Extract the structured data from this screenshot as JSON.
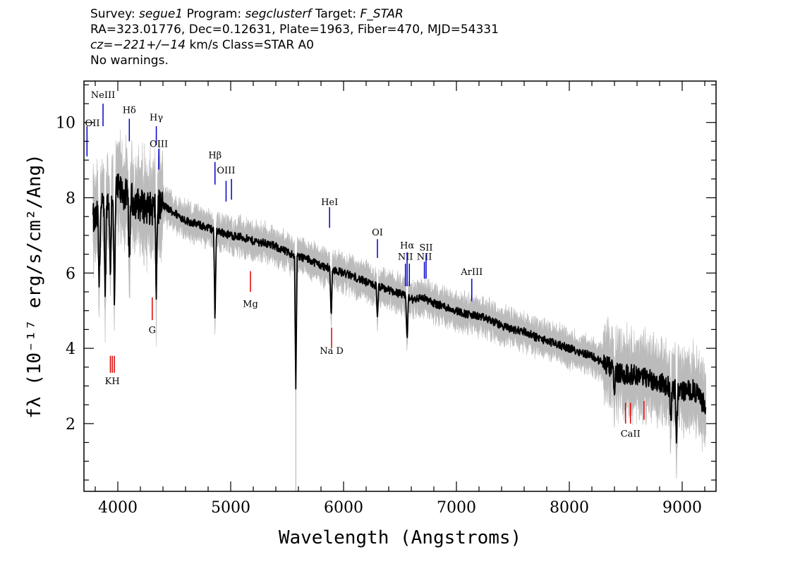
{
  "header": {
    "line1": {
      "survey_label": "Survey: ",
      "survey": "segue1",
      "program_label": " Program: ",
      "program": "segclusterf",
      "target_label": " Target: ",
      "target": "F_STAR"
    },
    "line2": "RA=323.01776, Dec=0.12631, Plate=1963, Fiber=470, MJD=54331",
    "line3": {
      "cz_label": "cz=",
      "cz": "−221+/−14",
      "cz_units": " km/s Class=STAR A0"
    },
    "line4": "No warnings."
  },
  "chart_data": {
    "type": "line",
    "xlabel": "Wavelength (Angstroms)",
    "ylabel": "fλ (10⁻¹⁷ erg/s/cm²/Ang)",
    "xlim": [
      3700,
      9300
    ],
    "ylim": [
      0.2,
      11.1
    ],
    "x_ticks": [
      4000,
      5000,
      6000,
      7000,
      8000,
      9000
    ],
    "y_ticks": [
      2,
      4,
      6,
      8,
      10
    ],
    "colors": {
      "spectrum": "#000000",
      "error_band": "#bbbbbb",
      "emission_marker": "#0000cc",
      "absorption_marker": "#dd0000"
    },
    "series": [
      {
        "x": [
          3800,
          3900,
          4000,
          4100,
          4200,
          4300,
          4400,
          4500,
          4600,
          4700,
          4800,
          4900,
          5000,
          5100,
          5200,
          5300,
          5400,
          5500,
          5600,
          5700,
          5800,
          5900,
          6000,
          6100,
          6200,
          6300,
          6400,
          6500,
          6600,
          6700,
          6800,
          6900,
          7000,
          7100,
          7200,
          7300,
          7400,
          7500,
          7600,
          7700,
          7800,
          7900,
          8000,
          8100,
          8200,
          8300,
          8400,
          8500,
          8600,
          8700,
          8800,
          8900,
          9000,
          9100,
          9200
        ],
        "y": [
          7.4,
          7.9,
          8.2,
          8.0,
          7.8,
          7.7,
          7.8,
          7.6,
          7.4,
          7.3,
          7.2,
          7.1,
          7.0,
          6.95,
          6.85,
          6.8,
          6.7,
          6.55,
          6.45,
          6.35,
          6.2,
          6.1,
          6.0,
          5.9,
          5.75,
          5.65,
          5.55,
          5.45,
          5.3,
          5.35,
          5.2,
          5.1,
          5.0,
          4.9,
          4.85,
          4.75,
          4.6,
          4.5,
          4.45,
          4.3,
          4.2,
          4.1,
          4.0,
          3.9,
          3.8,
          3.6,
          3.4,
          3.3,
          3.3,
          3.2,
          3.1,
          2.95,
          2.85,
          2.9,
          2.5
        ]
      }
    ],
    "absorption_features": [
      {
        "wavelength": 3700,
        "depth": 0.0
      },
      {
        "wavelength": 3835,
        "depth": 2.0
      },
      {
        "wavelength": 3889,
        "depth": 2.5
      },
      {
        "wavelength": 3934,
        "depth": 2.2
      },
      {
        "wavelength": 3970,
        "depth": 3.4
      },
      {
        "wavelength": 4102,
        "depth": 2.0
      },
      {
        "wavelength": 4341,
        "depth": 2.3
      },
      {
        "wavelength": 4861,
        "depth": 2.5
      },
      {
        "wavelength": 5577,
        "depth": 3.6
      },
      {
        "wavelength": 5890,
        "depth": 1.3
      },
      {
        "wavelength": 6300,
        "depth": 0.9
      },
      {
        "wavelength": 6563,
        "depth": 1.2
      },
      {
        "wavelength": 8400,
        "depth": 0.8
      },
      {
        "wavelength": 8900,
        "depth": 0.9
      },
      {
        "wavelength": 8950,
        "depth": 1.4
      }
    ],
    "line_markers": [
      {
        "label": "OII",
        "wavelength": 3727,
        "kind": "emission",
        "y_top": 9.9,
        "y_bottom": 9.1,
        "label_y": 9.9
      },
      {
        "label": "NeIII",
        "wavelength": 3869,
        "kind": "emission",
        "y_top": 10.5,
        "y_bottom": 9.9,
        "label_y": 10.65
      },
      {
        "label": "Hδ",
        "wavelength": 4102,
        "kind": "emission",
        "y_top": 10.1,
        "y_bottom": 9.5,
        "label_y": 10.25
      },
      {
        "label": "Hγ",
        "wavelength": 4341,
        "kind": "emission",
        "y_top": 9.9,
        "y_bottom": 9.4,
        "label_y": 10.05
      },
      {
        "label": "OIII",
        "wavelength": 4363,
        "kind": "emission",
        "y_top": 9.3,
        "y_bottom": 8.75,
        "label_y": 9.35
      },
      {
        "label": "Hβ",
        "wavelength": 4861,
        "kind": "emission",
        "y_top": 8.95,
        "y_bottom": 8.35,
        "label_y": 9.05
      },
      {
        "label": "OIII",
        "wavelength": 4959,
        "kind": "emission",
        "y_top": 8.45,
        "y_bottom": 7.9,
        "label_y": 8.65
      },
      {
        "label": "",
        "wavelength": 5007,
        "kind": "emission",
        "y_top": 8.5,
        "y_bottom": 7.95,
        "label_y": 8.5
      },
      {
        "label": "HeI",
        "wavelength": 5876,
        "kind": "emission",
        "y_top": 7.75,
        "y_bottom": 7.2,
        "label_y": 7.8
      },
      {
        "label": "OI",
        "wavelength": 6300,
        "kind": "emission",
        "y_top": 6.9,
        "y_bottom": 6.4,
        "label_y": 7.0
      },
      {
        "label": "NII",
        "wavelength": 6548,
        "kind": "emission",
        "y_top": 6.25,
        "y_bottom": 5.65,
        "label_y": 6.35
      },
      {
        "label": "Hα",
        "wavelength": 6563,
        "kind": "emission",
        "y_top": 6.55,
        "y_bottom": 5.65,
        "label_y": 6.65
      },
      {
        "label": "",
        "wavelength": 6583,
        "kind": "emission",
        "y_top": 6.25,
        "y_bottom": 5.65,
        "label_y": 6.25
      },
      {
        "label": "NII",
        "wavelength": 6716,
        "kind": "emission",
        "y_top": 6.3,
        "y_bottom": 5.85,
        "label_y": 6.35
      },
      {
        "label": "SII",
        "wavelength": 6731,
        "kind": "emission",
        "y_top": 6.5,
        "y_bottom": 5.85,
        "label_y": 6.6
      },
      {
        "label": "ArIII",
        "wavelength": 7136,
        "kind": "emission",
        "y_top": 5.85,
        "y_bottom": 5.25,
        "label_y": 5.95
      },
      {
        "label": "KH",
        "wavelength": 3951,
        "kind": "absorption",
        "y_top": 3.8,
        "y_bottom": 3.35,
        "label_y": 3.05
      },
      {
        "label": "",
        "wavelength": 3934,
        "kind": "absorption",
        "y_top": 3.8,
        "y_bottom": 3.35,
        "label_y": 3.05
      },
      {
        "label": "",
        "wavelength": 3969,
        "kind": "absorption",
        "y_top": 3.8,
        "y_bottom": 3.35,
        "label_y": 3.05
      },
      {
        "label": "G",
        "wavelength": 4305,
        "kind": "absorption",
        "y_top": 5.35,
        "y_bottom": 4.75,
        "label_y": 4.4
      },
      {
        "label": "Mg",
        "wavelength": 5175,
        "kind": "absorption",
        "y_top": 6.05,
        "y_bottom": 5.5,
        "label_y": 5.1
      },
      {
        "label": "Na  D",
        "wavelength": 5894,
        "kind": "absorption",
        "y_top": 4.55,
        "y_bottom": 4.0,
        "label_y": 3.85
      },
      {
        "label": "CaII",
        "wavelength": 8542,
        "kind": "absorption",
        "y_top": 2.55,
        "y_bottom": 2.0,
        "label_y": 1.65
      },
      {
        "label": "",
        "wavelength": 8498,
        "kind": "absorption",
        "y_top": 2.55,
        "y_bottom": 2.0,
        "label_y": 1.65
      },
      {
        "label": "",
        "wavelength": 8662,
        "kind": "absorption",
        "y_top": 2.6,
        "y_bottom": 2.1,
        "label_y": 2.1
      }
    ]
  }
}
